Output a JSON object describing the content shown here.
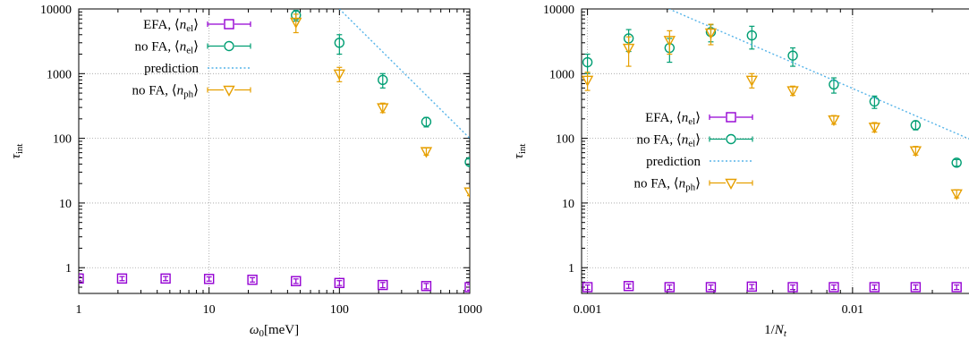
{
  "chart_data": [
    {
      "type": "scatter",
      "x_scale": "log",
      "y_scale": "log",
      "xlim": [
        1,
        1000
      ],
      "ylim": [
        0.4,
        10000
      ],
      "xlabel": "ω₀[meV]",
      "ylabel": "τ_int",
      "x_ticks": [
        {
          "value": 1,
          "label": "1"
        },
        {
          "value": 10,
          "label": "10"
        },
        {
          "value": 100,
          "label": "100"
        },
        {
          "value": 1000,
          "label": "1000"
        }
      ],
      "y_ticks": [
        {
          "value": 1,
          "label": "1"
        },
        {
          "value": 10,
          "label": "10"
        },
        {
          "value": 100,
          "label": "100"
        },
        {
          "value": 1000,
          "label": "1000"
        },
        {
          "value": 10000,
          "label": "10000"
        }
      ],
      "grid": true,
      "legend_position": "top-left",
      "legend_order": [
        "efa",
        "nofa_el",
        "prediction",
        "nofa_ph"
      ],
      "series": [
        {
          "key": "efa",
          "legend": "EFA, ⟨n_el⟩",
          "color": "#9400d3",
          "marker": "square",
          "x": [
            1,
            2.15,
            4.64,
            10,
            21.5,
            46.4,
            100,
            215,
            464,
            1000
          ],
          "y": [
            0.68,
            0.68,
            0.68,
            0.67,
            0.65,
            0.62,
            0.58,
            0.54,
            0.52,
            0.5
          ],
          "err": [
            0.05,
            0.05,
            0.05,
            0.05,
            0.05,
            0.05,
            0.05,
            0.05,
            0.05,
            0.05
          ]
        },
        {
          "key": "nofa_el",
          "legend": "no FA, ⟨n_el⟩",
          "color": "#009e73",
          "marker": "circle",
          "x": [
            46.4,
            100,
            215,
            464,
            1000
          ],
          "y": [
            8000,
            3000,
            800,
            180,
            43
          ],
          "err": [
            1500,
            1000,
            200,
            30,
            5
          ]
        },
        {
          "key": "prediction",
          "legend": "prediction",
          "color": "#56b4e9",
          "line": "dotted",
          "x": [
            100,
            1000
          ],
          "y": [
            10000,
            100
          ]
        },
        {
          "key": "nofa_ph",
          "legend": "no FA, ⟨n_ph⟩",
          "color": "#e69f00",
          "marker": "triangle-down",
          "x": [
            46.4,
            100,
            215,
            464,
            1000
          ],
          "y": [
            6300,
            1000,
            300,
            63,
            15
          ],
          "err": [
            2000,
            250,
            50,
            8,
            2
          ]
        }
      ]
    },
    {
      "type": "scatter",
      "x_scale": "log",
      "y_scale": "log",
      "xlim": [
        0.00095,
        0.0275
      ],
      "ylim": [
        0.4,
        10000
      ],
      "xlabel": "1/N_t",
      "ylabel": "τ_int",
      "x_ticks": [
        {
          "value": 0.001,
          "label": "0.001"
        },
        {
          "value": 0.01,
          "label": "0.01"
        }
      ],
      "y_ticks": [
        {
          "value": 1,
          "label": "1"
        },
        {
          "value": 10,
          "label": "10"
        },
        {
          "value": 100,
          "label": "100"
        },
        {
          "value": 1000,
          "label": "1000"
        },
        {
          "value": 10000,
          "label": "10000"
        }
      ],
      "grid": true,
      "legend_position": "center-left",
      "legend_order": [
        "efa",
        "nofa_el",
        "prediction",
        "nofa_ph"
      ],
      "series": [
        {
          "key": "efa",
          "legend": "EFA, ⟨n_el⟩",
          "color": "#9400d3",
          "marker": "square",
          "x": [
            0.001,
            0.00143,
            0.00204,
            0.00292,
            0.00417,
            0.00595,
            0.0085,
            0.0121,
            0.0173,
            0.0247
          ],
          "y": [
            0.5,
            0.52,
            0.5,
            0.5,
            0.51,
            0.5,
            0.5,
            0.5,
            0.5,
            0.5
          ],
          "err": [
            0.04,
            0.04,
            0.04,
            0.04,
            0.04,
            0.04,
            0.04,
            0.04,
            0.04,
            0.04
          ]
        },
        {
          "key": "nofa_el",
          "legend": "no FA, ⟨n_el⟩",
          "color": "#009e73",
          "marker": "circle",
          "x": [
            0.001,
            0.00143,
            0.00204,
            0.00292,
            0.00417,
            0.00595,
            0.0085,
            0.0121,
            0.0173,
            0.0247
          ],
          "y": [
            1500,
            3500,
            2500,
            4400,
            3900,
            1900,
            680,
            370,
            160,
            42
          ],
          "err": [
            500,
            1300,
            1000,
            1300,
            1500,
            600,
            180,
            80,
            25,
            5
          ]
        },
        {
          "key": "prediction",
          "legend": "prediction",
          "color": "#56b4e9",
          "line": "dotted",
          "x": [
            0.00203,
            0.0275
          ],
          "y": [
            10000,
            98
          ]
        },
        {
          "key": "nofa_ph",
          "legend": "no FA, ⟨n_ph⟩",
          "color": "#e69f00",
          "marker": "triangle-down",
          "x": [
            0.001,
            0.00143,
            0.00204,
            0.00292,
            0.00417,
            0.00595,
            0.0085,
            0.0121,
            0.0173,
            0.0247
          ],
          "y": [
            800,
            2500,
            3300,
            4300,
            800,
            550,
            195,
            150,
            65,
            14
          ],
          "err": [
            250,
            1200,
            1300,
            1500,
            200,
            90,
            30,
            25,
            10,
            2
          ]
        }
      ]
    }
  ]
}
